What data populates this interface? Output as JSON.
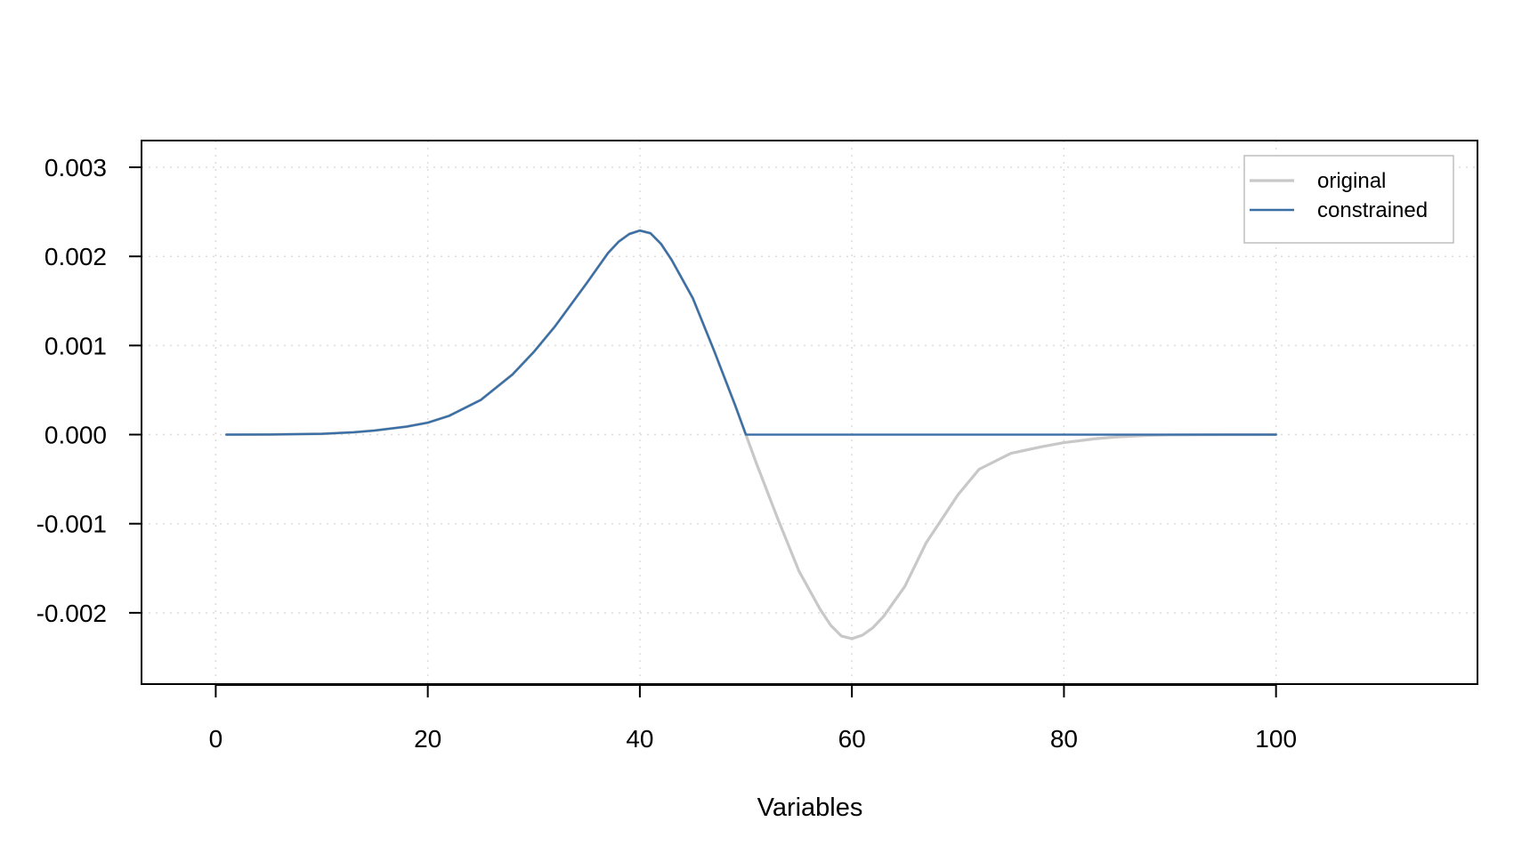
{
  "chart_data": {
    "type": "line",
    "title": "",
    "xlabel": "Variables",
    "ylabel": "",
    "xlim": [
      -7,
      119
    ],
    "ylim": [
      -0.0028,
      0.0033
    ],
    "grid": true,
    "legend_position": "top-right",
    "x_ticks": [
      0,
      20,
      40,
      60,
      80,
      100
    ],
    "x_tick_labels": [
      "0",
      "20",
      "40",
      "60",
      "80",
      "100"
    ],
    "y_ticks": [
      0.003,
      0.002,
      0.001,
      0.0,
      -0.001,
      -0.002
    ],
    "y_tick_labels": [
      "0.003",
      "0.002",
      "0.001",
      "0.000",
      "-0.001",
      "-0.002"
    ],
    "series": [
      {
        "name": "original",
        "color": "#c8c8c8",
        "x": [
          1,
          5,
          10,
          13,
          15,
          18,
          20,
          22,
          25,
          28,
          30,
          32,
          35,
          37,
          38,
          39,
          40,
          41,
          42,
          43,
          45,
          47,
          49,
          50,
          51,
          53,
          55,
          57,
          58,
          59,
          60,
          61,
          62,
          63,
          65,
          67,
          70,
          72,
          75,
          78,
          80,
          83,
          85,
          88,
          90,
          95,
          100
        ],
        "y": [
          0.0,
          1e-06,
          9e-06,
          2.6e-05,
          4.6e-05,
          9e-05,
          0.000134,
          0.00021,
          0.000389,
          0.000676,
          0.000928,
          0.001215,
          0.001702,
          0.002038,
          0.002165,
          0.002251,
          0.00229,
          0.00226,
          0.00214,
          0.00196,
          0.00153,
          0.000942,
          0.000325,
          0.0,
          -0.000325,
          -0.000942,
          -0.00153,
          -0.00196,
          -0.00214,
          -0.00226,
          -0.00229,
          -0.002251,
          -0.002165,
          -0.002038,
          -0.001702,
          -0.001215,
          -0.000676,
          -0.000389,
          -0.00021,
          -0.000134,
          -9e-05,
          -4.6e-05,
          -2.6e-05,
          -9e-06,
          -4e-06,
          -1e-06,
          0.0
        ]
      },
      {
        "name": "constrained",
        "color": "#3a6fa6",
        "x": [
          1,
          5,
          10,
          13,
          15,
          18,
          20,
          22,
          25,
          28,
          30,
          32,
          35,
          37,
          38,
          39,
          40,
          41,
          42,
          43,
          45,
          47,
          49,
          50,
          51,
          53,
          55,
          57,
          58,
          59,
          60,
          61,
          62,
          63,
          65,
          67,
          70,
          72,
          75,
          78,
          80,
          83,
          85,
          88,
          90,
          95,
          100
        ],
        "y": [
          0.0,
          1e-06,
          9e-06,
          2.6e-05,
          4.6e-05,
          9e-05,
          0.000134,
          0.00021,
          0.000389,
          0.000676,
          0.000928,
          0.001215,
          0.001702,
          0.002038,
          0.002165,
          0.002251,
          0.00229,
          0.00226,
          0.00214,
          0.00196,
          0.00153,
          0.000942,
          0.000325,
          0.0,
          0.0,
          0.0,
          0.0,
          0.0,
          0.0,
          0.0,
          0.0,
          0.0,
          0.0,
          0.0,
          0.0,
          0.0,
          0.0,
          0.0,
          0.0,
          0.0,
          0.0,
          0.0,
          0.0,
          0.0,
          0.0,
          0.0,
          0.0
        ]
      }
    ]
  }
}
